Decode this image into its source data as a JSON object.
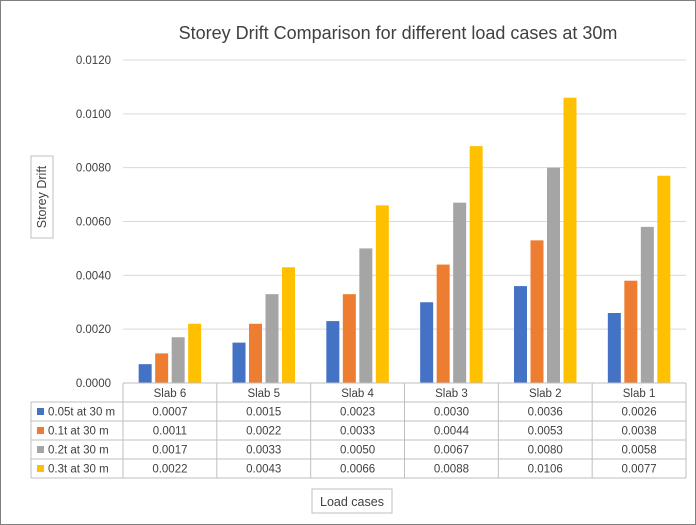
{
  "chart_data": {
    "type": "bar",
    "title": "Storey Drift Comparison for different load cases at 30m",
    "xlabel": "Load cases",
    "ylabel": "Storey Drift",
    "categories": [
      "Slab 6",
      "Slab 5",
      "Slab 4",
      "Slab 3",
      "Slab 2",
      "Slab 1"
    ],
    "ylim": [
      0,
      0.012
    ],
    "yticks": [
      "0.0000",
      "0.0020",
      "0.0040",
      "0.0060",
      "0.0080",
      "0.0100",
      "0.0120"
    ],
    "grid": true,
    "legend": "data-table-bottom",
    "series": [
      {
        "name": "0.05t at 30 m",
        "color": "#4472c4",
        "values": [
          0.0007,
          0.0015,
          0.0023,
          0.003,
          0.0036,
          0.0026
        ],
        "labels": [
          "0.0007",
          "0.0015",
          "0.0023",
          "0.0030",
          "0.0036",
          "0.0026"
        ]
      },
      {
        "name": "0.1t at 30 m",
        "color": "#ed7d31",
        "values": [
          0.0011,
          0.0022,
          0.0033,
          0.0044,
          0.0053,
          0.0038
        ],
        "labels": [
          "0.0011",
          "0.0022",
          "0.0033",
          "0.0044",
          "0.0053",
          "0.0038"
        ]
      },
      {
        "name": "0.2t at 30 m",
        "color": "#a5a5a5",
        "values": [
          0.0017,
          0.0033,
          0.005,
          0.0067,
          0.008,
          0.0058
        ],
        "labels": [
          "0.0017",
          "0.0033",
          "0.0050",
          "0.0067",
          "0.0080",
          "0.0058"
        ]
      },
      {
        "name": "0.3t at 30 m",
        "color": "#ffc000",
        "values": [
          0.0022,
          0.0043,
          0.0066,
          0.0088,
          0.0106,
          0.0077
        ],
        "labels": [
          "0.0022",
          "0.0043",
          "0.0066",
          "0.0088",
          "0.0106",
          "0.0077"
        ]
      }
    ]
  }
}
